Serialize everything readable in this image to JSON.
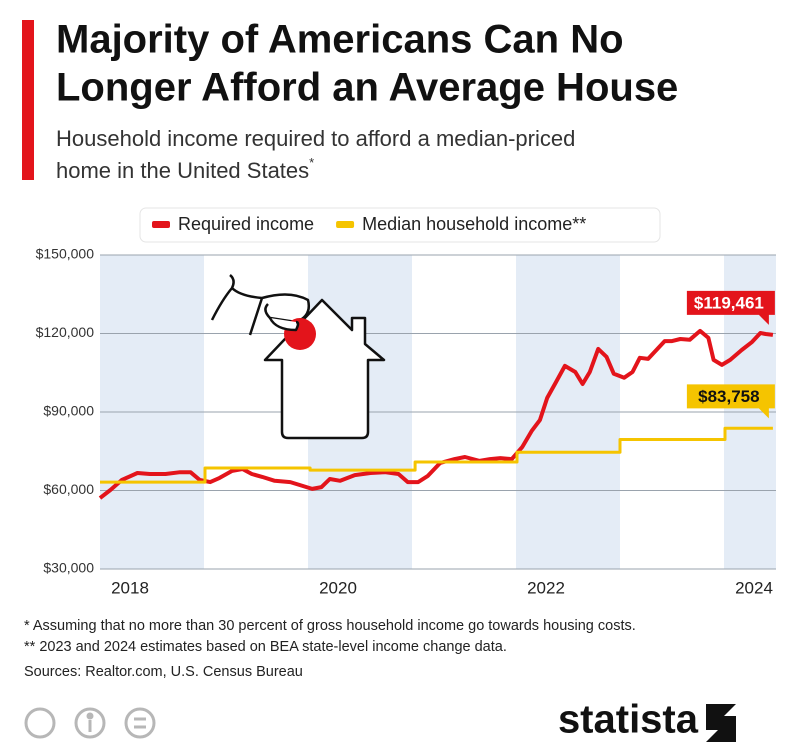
{
  "chart_data": {
    "type": "line",
    "title": [
      "Majority of Americans Can No",
      "Longer Afford an Average House"
    ],
    "subtitle": [
      "Household income required to afford a median-priced",
      "home in the United States"
    ],
    "subtitle_note": "*",
    "xlim": [
      2018,
      2024.5
    ],
    "xticks": [
      2018,
      2020,
      2022,
      2024
    ],
    "ylim": [
      30000,
      150000
    ],
    "yticks": [
      {
        "value": 30000,
        "label": "$30,000"
      },
      {
        "value": 60000,
        "label": "$60,000"
      },
      {
        "value": 90000,
        "label": "$90,000"
      },
      {
        "value": 120000,
        "label": "$120,000"
      },
      {
        "value": 150000,
        "label": "$150,000"
      }
    ],
    "grid": true,
    "series": [
      {
        "name": "Required income",
        "color": "#e3141b",
        "x": [
          2018.0,
          2018.1,
          2018.21,
          2018.36,
          2018.48,
          2018.63,
          2018.77,
          2018.87,
          2018.96,
          2019.06,
          2019.15,
          2019.27,
          2019.37,
          2019.46,
          2019.56,
          2019.68,
          2019.83,
          2019.92,
          2020.04,
          2020.13,
          2020.21,
          2020.31,
          2020.45,
          2020.6,
          2020.74,
          2020.87,
          2020.96,
          2021.06,
          2021.15,
          2021.27,
          2021.41,
          2021.51,
          2021.65,
          2021.75,
          2021.85,
          2021.96,
          2022.06,
          2022.15,
          2022.23,
          2022.3,
          2022.38,
          2022.47,
          2022.57,
          2022.64,
          2022.71,
          2022.79,
          2022.87,
          2022.94,
          2023.04,
          2023.12,
          2023.19,
          2023.27,
          2023.35,
          2023.43,
          2023.5,
          2023.58,
          2023.67,
          2023.77,
          2023.85,
          2023.9,
          2023.98,
          2024.06,
          2024.17,
          2024.27,
          2024.35,
          2024.4,
          2024.47
        ],
        "values": [
          57100,
          60200,
          64000,
          66700,
          66300,
          66300,
          67000,
          67000,
          64000,
          63200,
          64800,
          67500,
          68200,
          66300,
          65200,
          63700,
          63200,
          62100,
          60600,
          61300,
          64400,
          63700,
          65900,
          66700,
          67000,
          66300,
          63200,
          63200,
          65500,
          70500,
          72000,
          72800,
          71300,
          72000,
          72400,
          72000,
          76600,
          82700,
          86900,
          95400,
          101100,
          107600,
          105300,
          100700,
          105300,
          114100,
          111100,
          104600,
          103100,
          105300,
          110700,
          110300,
          113700,
          117100,
          117100,
          117900,
          117600,
          121000,
          118300,
          109900,
          108000,
          109900,
          113700,
          116800,
          120200,
          119800,
          119461
        ],
        "value_labels": [
          null,
          null,
          null,
          null,
          null,
          null,
          null,
          null,
          null,
          null,
          null,
          null,
          null,
          null,
          null,
          null,
          null,
          null,
          null,
          null,
          null,
          null,
          null,
          null,
          null,
          null,
          null,
          null,
          null,
          null,
          null,
          null,
          null,
          null,
          null,
          null,
          null,
          null,
          null,
          null,
          null,
          null,
          null,
          null,
          null,
          null,
          null,
          null,
          null,
          null,
          null,
          null,
          null,
          null,
          null,
          null,
          null,
          null,
          null,
          null,
          null,
          null,
          null,
          null,
          null,
          null,
          "$119,461"
        ]
      },
      {
        "name": "Median household income**",
        "color": "#f5c400",
        "x": [
          2018.0,
          2019.01,
          2019.01,
          2020.02,
          2020.02,
          2021.03,
          2021.03,
          2022.01,
          2022.01,
          2023.0,
          2023.0,
          2024.01,
          2024.01,
          2024.47
        ],
        "values": [
          63200,
          63200,
          68600,
          68600,
          67800,
          67800,
          70900,
          70900,
          74600,
          74600,
          79500,
          79500,
          83758,
          83758
        ],
        "value_labels": [
          null,
          null,
          null,
          null,
          null,
          null,
          null,
          null,
          null,
          null,
          null,
          null,
          null,
          "$83,758"
        ]
      }
    ],
    "footnotes": [
      "*   Assuming that no more than 30 percent of gross household income go towards housing costs.",
      "** 2023 and 2024 estimates based on BEA state-level income change data."
    ],
    "source": "Sources: Realtor.com, U.S. Census Bureau",
    "brand": "statista"
  }
}
